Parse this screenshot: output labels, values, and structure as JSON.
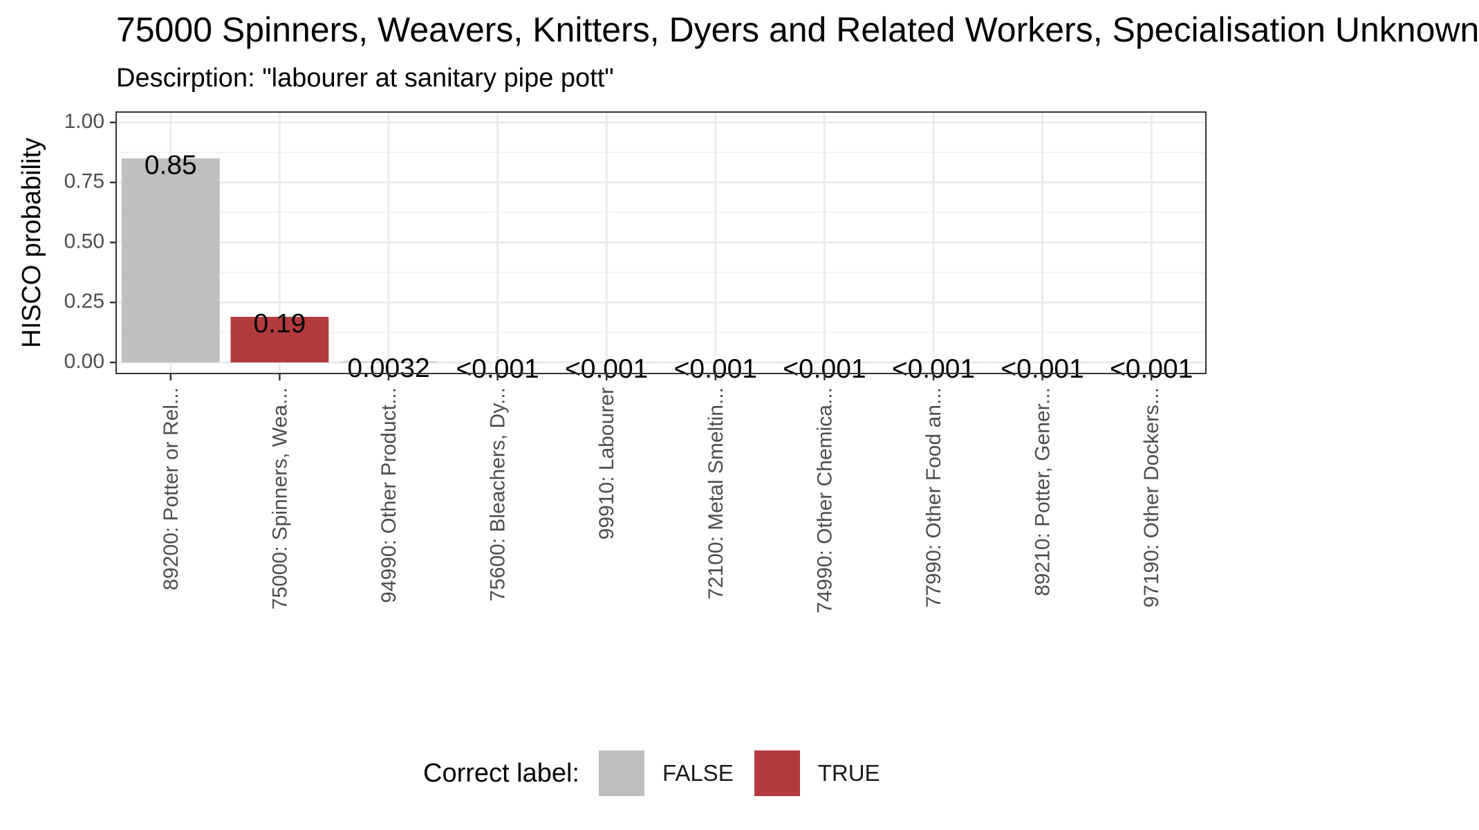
{
  "chart_data": {
    "type": "bar",
    "title": "75000 Spinners, Weavers, Knitters, Dyers and Related Workers, Specialisation Unknown",
    "subtitle": "Descirption: \"labourer at sanitary pipe pott\"",
    "xlabel": "",
    "ylabel": "HISCO probability",
    "ylim": [
      0,
      1.05
    ],
    "yticks": [
      0.0,
      0.25,
      0.5,
      0.75,
      1.0
    ],
    "ytick_labels": [
      "0.00",
      "0.25",
      "0.50",
      "0.75",
      "1.00"
    ],
    "grid": true,
    "categories": [
      "89200: Potter or Rel...",
      "75000: Spinners, Wea...",
      "94990: Other Product...",
      "75600: Bleachers, Dy...",
      "99910: Labourer",
      "72100: Metal Smeltin...",
      "74990: Other Chemica...",
      "77990: Other Food an...",
      "89210: Potter, Gener...",
      "97190: Other Dockers..."
    ],
    "values": [
      0.85,
      0.19,
      0.0032,
      0.0005,
      0.0005,
      0.0005,
      0.0005,
      0.0005,
      0.0005,
      0.0005
    ],
    "value_labels": [
      "0.85",
      "0.19",
      "0.0032",
      "<0.001",
      "<0.001",
      "<0.001",
      "<0.001",
      "<0.001",
      "<0.001",
      "<0.001"
    ],
    "correct": [
      false,
      true,
      false,
      false,
      false,
      false,
      false,
      false,
      false,
      false
    ],
    "legend": {
      "title": "Correct label:",
      "placement": "bottom",
      "entries": [
        {
          "label": "FALSE",
          "color": "#bebebe"
        },
        {
          "label": "TRUE",
          "color": "#b33b3e"
        }
      ]
    }
  }
}
